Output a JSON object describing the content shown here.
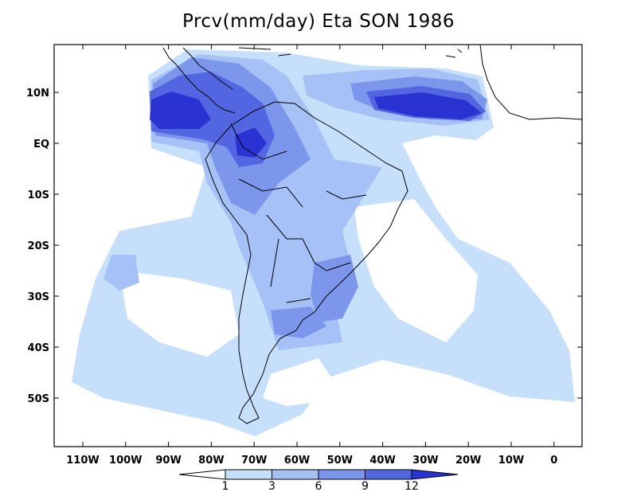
{
  "title": "Prcv(mm/day) Eta SON 1986",
  "variable": "Prcv",
  "units": "mm/day",
  "model": "Eta",
  "season": "SON",
  "year": "1986",
  "lat_labels": [
    "10N",
    "EQ",
    "10S",
    "20S",
    "30S",
    "40S",
    "50S"
  ],
  "lon_labels": [
    "110W",
    "100W",
    "90W",
    "80W",
    "70W",
    "60W",
    "50W",
    "40W",
    "30W",
    "20W",
    "10W",
    "0"
  ],
  "colorbar": {
    "levels": [
      "1",
      "3",
      "6",
      "9",
      "12"
    ],
    "colors": [
      "#ffffff",
      "#c6e0fc",
      "#a5c1f5",
      "#7c96ec",
      "#5266e2",
      "#2a33d2"
    ]
  },
  "fill_colors": {
    "c1": "#c6e0fc",
    "c2": "#a5c1f5",
    "c3": "#7c96ec",
    "c4": "#5266e2",
    "c5": "#2a33d2"
  }
}
